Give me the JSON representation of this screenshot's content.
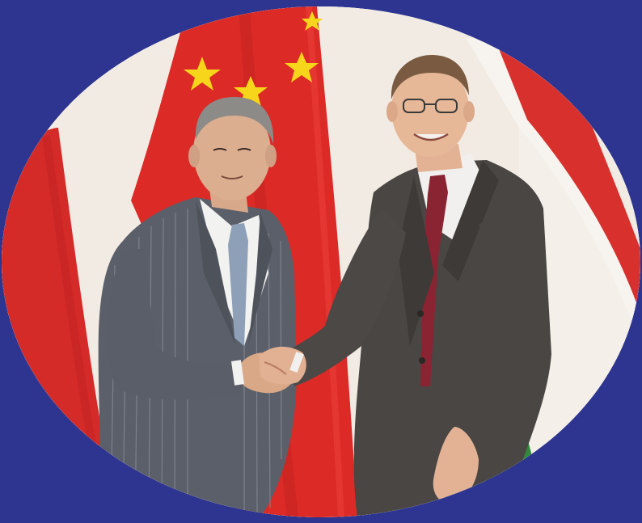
{
  "image": {
    "kind": "photograph",
    "crop_shape": "oval",
    "colors": {
      "border_background": "#2d3590",
      "china_flag_red": "#dc2a27",
      "china_flag_star": "#f7d51a",
      "hungary_flag_red": "#d8302d",
      "hungary_flag_white": "#f7f3ee",
      "hungary_flag_green": "#2f8a3c",
      "wall": "#f2ebe4",
      "suit_left": "#5b5f69",
      "suit_right": "#4a4643",
      "tie_left": "#8ea0b8",
      "tie_right": "#8a2432"
    },
    "elements": [
      "china-flag-left",
      "china-flag-center",
      "hungary-flag-right",
      "person-left",
      "person-right",
      "handshake"
    ]
  }
}
